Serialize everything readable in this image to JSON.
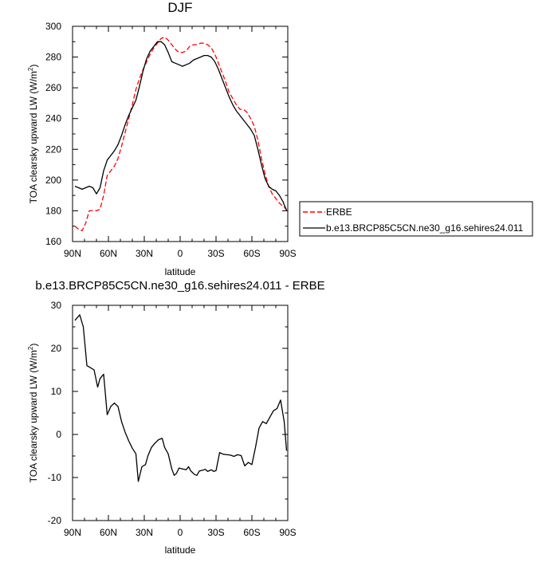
{
  "chart_data": [
    {
      "type": "line",
      "title": "DJF",
      "xlabel": "latitude",
      "ylabel": "TOA clearsky upward LW (W/m",
      "ylabel_sup": "2",
      "ylabel_close": ")",
      "xlim": [
        90,
        -90
      ],
      "ylim": [
        160,
        300
      ],
      "x_ticks": [
        90,
        60,
        30,
        0,
        -30,
        -60,
        -90
      ],
      "x_tick_labels": [
        "90N",
        "60N",
        "30N",
        "0",
        "30S",
        "60S",
        "90S"
      ],
      "y_ticks": [
        160,
        180,
        200,
        220,
        240,
        260,
        280,
        300
      ],
      "y_tick_labels": [
        "160",
        "180",
        "200",
        "220",
        "240",
        "260",
        "280",
        "300"
      ],
      "grid": false,
      "legend_position": "right",
      "series": [
        {
          "name": "ERBE",
          "color": "#ff0000",
          "dash": true,
          "x": [
            88,
            85,
            82,
            79,
            76,
            73,
            70,
            67,
            64,
            61,
            58,
            55,
            52,
            49,
            46,
            43,
            40,
            37,
            34,
            31,
            28,
            25,
            22,
            19,
            16,
            13,
            10,
            7,
            4,
            1,
            -2,
            -5,
            -8,
            -11,
            -14,
            -17,
            -20,
            -23,
            -26,
            -29,
            -32,
            -35,
            -38,
            -41,
            -44,
            -47,
            -50,
            -53,
            -56,
            -59,
            -62,
            -65,
            -68,
            -71,
            -74,
            -77,
            -80,
            -83,
            -86,
            -89
          ],
          "y": [
            170,
            168,
            167,
            172,
            180,
            180,
            180,
            181,
            190,
            203,
            206,
            209,
            214,
            222,
            231,
            240,
            249,
            259,
            266,
            272,
            277,
            282,
            286,
            289,
            292,
            293,
            291,
            288,
            285,
            283,
            283,
            284,
            287,
            288,
            288,
            289,
            289,
            288,
            286,
            282,
            276,
            270,
            264,
            257,
            253,
            249,
            246,
            246,
            244,
            240,
            235,
            226,
            214,
            204,
            196,
            191,
            188,
            185,
            183,
            181
          ]
        },
        {
          "name": "b.e13.BRCP85C5CN.ne30_g16.sehires24.011",
          "color": "#000000",
          "dash": false,
          "x": [
            88,
            85,
            82,
            79,
            76,
            73,
            70,
            67,
            64,
            61,
            58,
            55,
            52,
            49,
            46,
            43,
            40,
            37,
            34,
            31,
            28,
            25,
            22,
            19,
            16,
            13,
            10,
            7,
            4,
            1,
            -2,
            -5,
            -8,
            -11,
            -14,
            -17,
            -20,
            -23,
            -26,
            -29,
            -32,
            -35,
            -38,
            -41,
            -44,
            -47,
            -50,
            -53,
            -56,
            -59,
            -62,
            -65,
            -68,
            -71,
            -74,
            -77,
            -80,
            -83,
            -86,
            -89
          ],
          "y": [
            196,
            195,
            194,
            195,
            196,
            195,
            191,
            195,
            206,
            213,
            216,
            219,
            223,
            229,
            236,
            242,
            247,
            252,
            261,
            271,
            279,
            284,
            287,
            290,
            290,
            288,
            283,
            277,
            276,
            275,
            274,
            275,
            276,
            278,
            279,
            280,
            281,
            281,
            280,
            277,
            272,
            266,
            260,
            254,
            249,
            245,
            242,
            239,
            236,
            233,
            229,
            220,
            210,
            201,
            196,
            194,
            193,
            190,
            186,
            180
          ]
        }
      ]
    },
    {
      "type": "line",
      "title": "b.e13.BRCP85C5CN.ne30_g16.sehires24.011 - ERBE",
      "xlabel": "latitude",
      "ylabel": "TOA clearsky upward LW (W/m",
      "ylabel_sup": "2",
      "ylabel_close": ")",
      "xlim": [
        90,
        -90
      ],
      "ylim": [
        -20,
        30
      ],
      "x_ticks": [
        90,
        60,
        30,
        0,
        -30,
        -60,
        -90
      ],
      "x_tick_labels": [
        "90N",
        "60N",
        "30N",
        "0",
        "30S",
        "60S",
        "90S"
      ],
      "y_ticks": [
        -20,
        -10,
        0,
        10,
        20,
        30
      ],
      "y_tick_labels": [
        "-20",
        "-10",
        "0",
        "10",
        "20",
        "30"
      ],
      "grid": false,
      "series": [
        {
          "color": "#000000",
          "dash": false,
          "x": [
            88,
            84,
            81,
            78,
            75,
            72,
            69,
            67,
            64,
            61,
            58,
            55,
            52,
            49,
            46,
            43,
            40,
            37,
            35,
            32,
            29,
            27,
            24,
            21,
            18,
            15,
            13,
            10,
            7,
            5,
            3,
            1,
            -2,
            -5,
            -7,
            -9,
            -12,
            -14,
            -16,
            -19,
            -21,
            -23,
            -26,
            -28,
            -30,
            -33,
            -36,
            -39,
            -42,
            -45,
            -48,
            -51,
            -54,
            -57,
            -60,
            -63,
            -66,
            -69,
            -72,
            -75,
            -78,
            -81,
            -84,
            -87,
            -89
          ],
          "y": [
            26.5,
            27.8,
            25,
            16,
            15.5,
            15,
            11,
            13,
            14,
            4.6,
            6.5,
            7.3,
            6.5,
            3,
            0.5,
            -1.5,
            -3.2,
            -4.5,
            -10.9,
            -7.5,
            -7,
            -5,
            -3,
            -2,
            -1.2,
            -0.9,
            -3,
            -4.5,
            -8,
            -9.5,
            -9,
            -7.8,
            -8,
            -8.2,
            -7.5,
            -8.5,
            -9.3,
            -9.5,
            -8.5,
            -8.3,
            -8.1,
            -8.6,
            -8.2,
            -8.6,
            -8.4,
            -4.2,
            -4.6,
            -4.7,
            -4.8,
            -5.1,
            -4.7,
            -4.9,
            -7.3,
            -6.5,
            -7,
            -3,
            1.5,
            3,
            2.5,
            4,
            5.5,
            6,
            8,
            3,
            -3.8
          ]
        }
      ]
    }
  ]
}
